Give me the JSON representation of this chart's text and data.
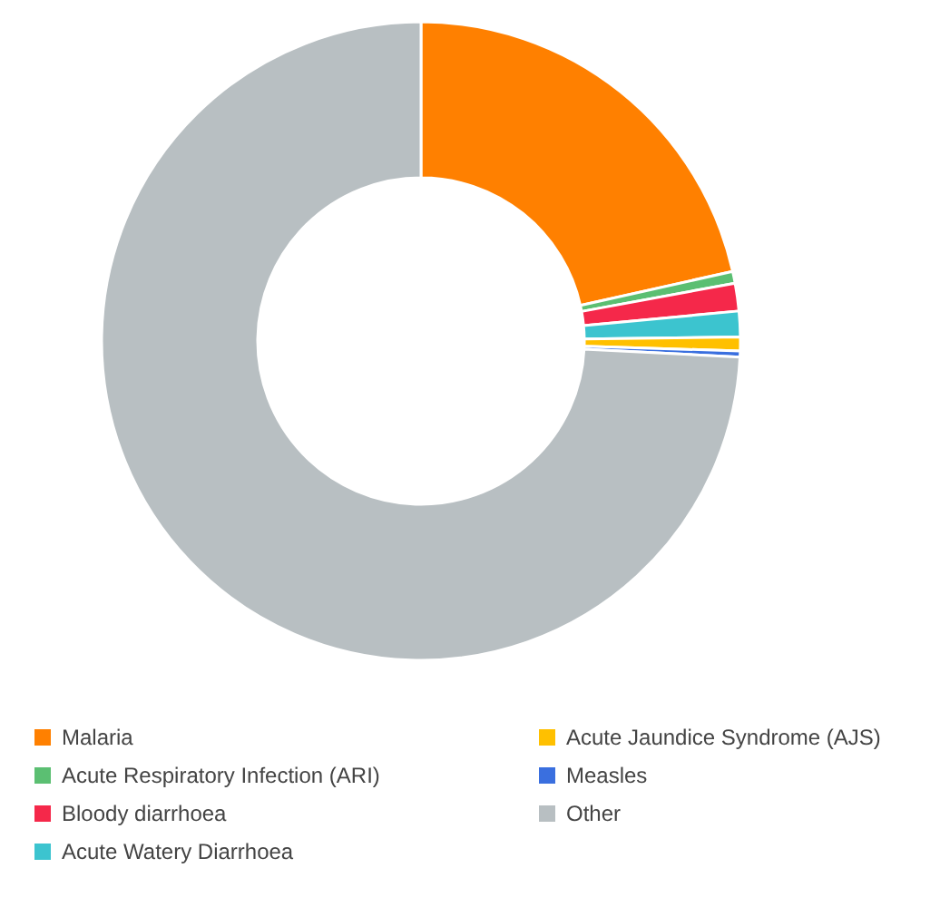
{
  "chart_data": {
    "type": "donut",
    "categories": [
      "Malaria",
      "Acute Respiratory Infection (ARI)",
      "Bloody diarrhoea",
      "Acute Watery Diarrhoea",
      "Acute Jaundice Syndrome (AJS)",
      "Measles",
      "Other"
    ],
    "values": [
      21.5,
      0.6,
      1.4,
      1.3,
      0.7,
      0.3,
      74.2
    ],
    "colors": [
      "#ff8000",
      "#5bbf72",
      "#f5284a",
      "#3cc4cf",
      "#ffc000",
      "#3a6fdf",
      "#b8bfc2"
    ],
    "legend": "bottom"
  }
}
